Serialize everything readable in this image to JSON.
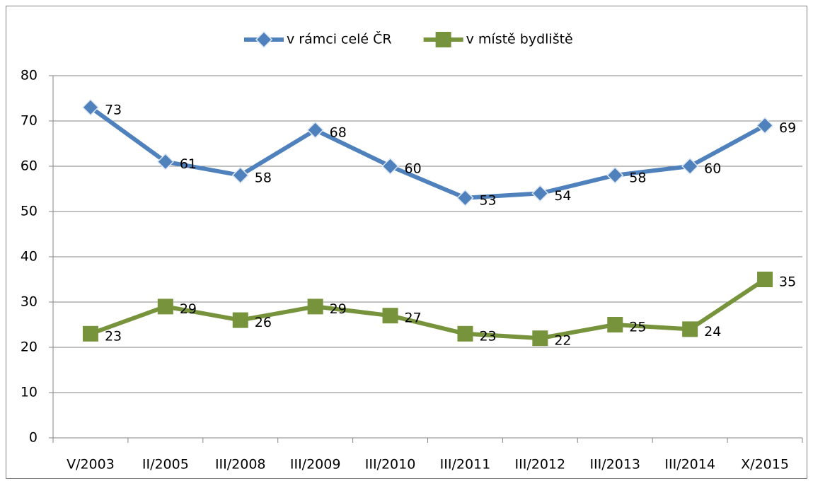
{
  "chart_data": {
    "type": "line",
    "categories": [
      "V/2003",
      "II/2005",
      "III/2008",
      "III/2009",
      "III/2010",
      "III/2011",
      "III/2012",
      "III/2013",
      "III/2014",
      "X/2015"
    ],
    "series": [
      {
        "name": "v rámci celé ČR",
        "color": "#4f81bd",
        "marker": "diamond",
        "values": [
          73,
          61,
          58,
          68,
          60,
          53,
          54,
          58,
          60,
          69
        ]
      },
      {
        "name": "v místě bydliště",
        "color": "#77933c",
        "marker": "square",
        "values": [
          23,
          29,
          26,
          29,
          27,
          23,
          22,
          25,
          24,
          35
        ]
      }
    ],
    "ylim": [
      0,
      80
    ],
    "yticks": [
      0,
      10,
      20,
      30,
      40,
      50,
      60,
      70,
      80
    ],
    "grid": true,
    "legend": "top",
    "data_labels": true
  }
}
